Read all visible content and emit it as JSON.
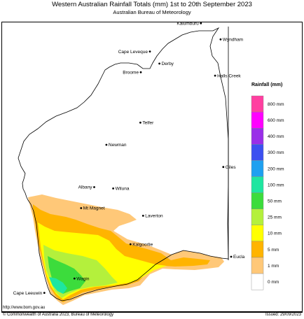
{
  "header": {
    "title": "Western Australian Rainfall Totals (mm) 1st to 20th September 2023",
    "subtitle": "Australian Bureau of Meteorology"
  },
  "places": [
    {
      "name": "Kalumburu",
      "lat": -14.3,
      "lon": 126.65
    },
    {
      "name": "Wyndham",
      "lat": -15.5,
      "lon": 128.1
    },
    {
      "name": "Cape Leveque",
      "lat": -16.4,
      "lon": 122.9
    },
    {
      "name": "Derby",
      "lat": -17.3,
      "lon": 123.6
    },
    {
      "name": "Broome",
      "lat": -17.95,
      "lon": 122.23
    },
    {
      "name": "Halls Creek",
      "lat": -18.2,
      "lon": 127.7
    },
    {
      "name": "Telfer",
      "lat": -21.7,
      "lon": 122.2
    },
    {
      "name": "Newman",
      "lat": -23.35,
      "lon": 119.7
    },
    {
      "name": "Giles",
      "lat": -25.0,
      "lon": 128.3
    },
    {
      "name": "Albany",
      "lat": -26.5,
      "lon": 118.8
    },
    {
      "name": "Wiluna",
      "lat": -26.6,
      "lon": 120.2
    },
    {
      "name": "Mt Magnet",
      "lat": -28.06,
      "lon": 117.84
    },
    {
      "name": "Laverton",
      "lat": -28.63,
      "lon": 122.4
    },
    {
      "name": "Kalgoorlie",
      "lat": -30.75,
      "lon": 121.47
    },
    {
      "name": "Eucla",
      "lat": -31.68,
      "lon": 128.88
    },
    {
      "name": "Wagin",
      "lat": -33.3,
      "lon": 117.35
    },
    {
      "name": "Cape Leeuwin",
      "lat": -34.37,
      "lon": 115.13
    }
  ],
  "legend": {
    "title": "Rainfall (mm)",
    "scale": "categorical (non-linear)",
    "levels": [
      {
        "label": "800 mm",
        "color": "#ff3fa0"
      },
      {
        "label": "600 mm",
        "color": "#ff00ff"
      },
      {
        "label": "400 mm",
        "color": "#9a2ee8"
      },
      {
        "label": "300 mm",
        "color": "#3c50f0"
      },
      {
        "label": "200 mm",
        "color": "#1ea0f0"
      },
      {
        "label": "100 mm",
        "color": "#1ee6a0"
      },
      {
        "label": "50 mm",
        "color": "#3cdc3c"
      },
      {
        "label": "25 mm",
        "color": "#b4f03c"
      },
      {
        "label": "10 mm",
        "color": "#ffff00"
      },
      {
        "label": "5 mm",
        "color": "#ffb400"
      },
      {
        "label": "1 mm",
        "color": "#ffc878"
      },
      {
        "label": "0 mm",
        "color": "#ffffff"
      }
    ]
  },
  "footer": {
    "url": "http://www.bom.gov.au",
    "copyright": "© Commonwealth of Australia 2023, Bureau of Meteorology",
    "issued": "Issued: 29/09/2023"
  }
}
